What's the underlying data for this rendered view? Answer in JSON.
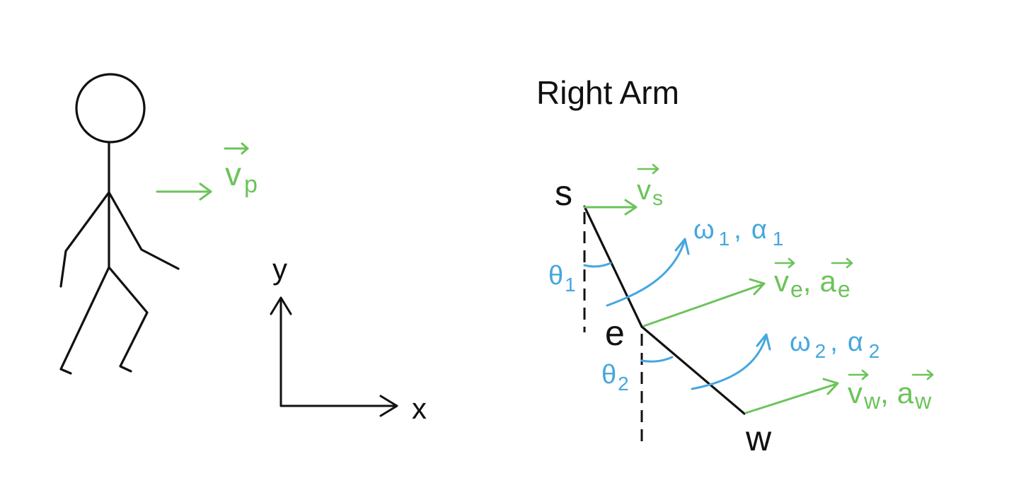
{
  "colors": {
    "green": "#6cc35a",
    "blue": "#45a7de",
    "ink": "#111111"
  },
  "title": "Right Arm",
  "axes": {
    "x_label": "x",
    "y_label": "y"
  },
  "person": {
    "velocity": {
      "symbol": "v",
      "sub": "p"
    }
  },
  "arm": {
    "points": {
      "shoulder": "s",
      "elbow": "e",
      "wrist": "w"
    },
    "shoulder_velocity": {
      "symbol": "v",
      "sub": "s"
    },
    "elbow_vectors": {
      "v": "v",
      "v_sub": "e",
      "sep": ",",
      "a": "a",
      "a_sub": "e"
    },
    "wrist_vectors": {
      "v": "v",
      "v_sub": "w",
      "sep": ",",
      "a": "a",
      "a_sub": "w"
    },
    "upper_arm_rotation": {
      "omega": "ω",
      "omega_sub": "1",
      "sep": ",",
      "alpha": "α",
      "alpha_sub": "1"
    },
    "forearm_rotation": {
      "omega": "ω",
      "omega_sub": "2",
      "sep": ",",
      "alpha": "α",
      "alpha_sub": "2"
    },
    "theta1": {
      "symbol": "θ",
      "sub": "1"
    },
    "theta2": {
      "symbol": "θ",
      "sub": "2"
    }
  }
}
